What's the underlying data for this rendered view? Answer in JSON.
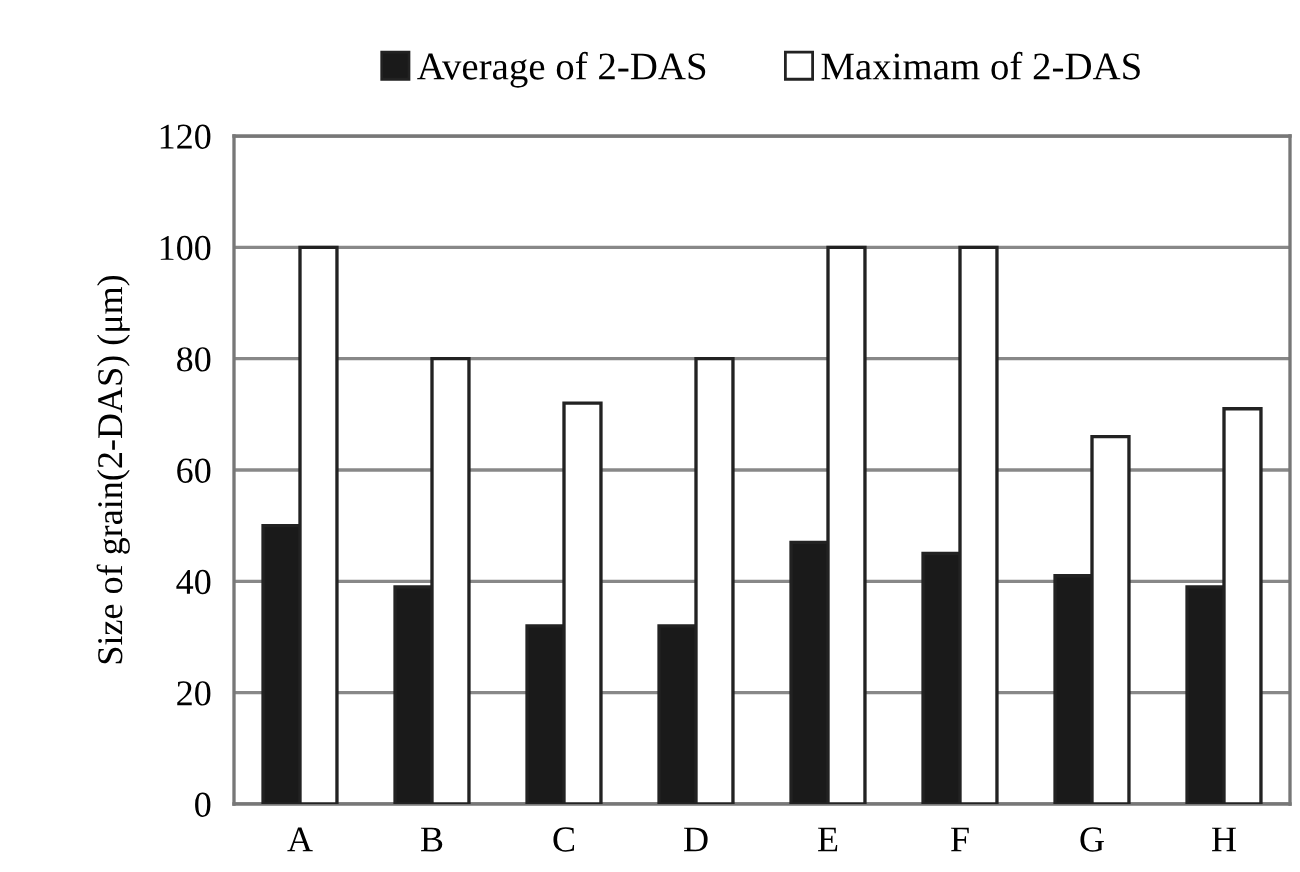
{
  "chart_data": {
    "type": "bar",
    "ylabel": "Size of grain(2-DAS) (μm)",
    "categories": [
      "A",
      "B",
      "C",
      "D",
      "E",
      "F",
      "G",
      "H"
    ],
    "series": [
      {
        "name": "Average of 2-DAS",
        "color": "#1a1a1a",
        "values": [
          50,
          39,
          32,
          32,
          47,
          45,
          41,
          39
        ]
      },
      {
        "name": "Maximam of 2-DAS",
        "color": "#ffffff",
        "values": [
          100,
          80,
          72,
          80,
          100,
          100,
          66,
          71
        ]
      }
    ],
    "ylim": [
      0,
      120
    ],
    "yticks": [
      0,
      20,
      40,
      60,
      80,
      100,
      120
    ],
    "grid": "y",
    "legend": "top"
  }
}
